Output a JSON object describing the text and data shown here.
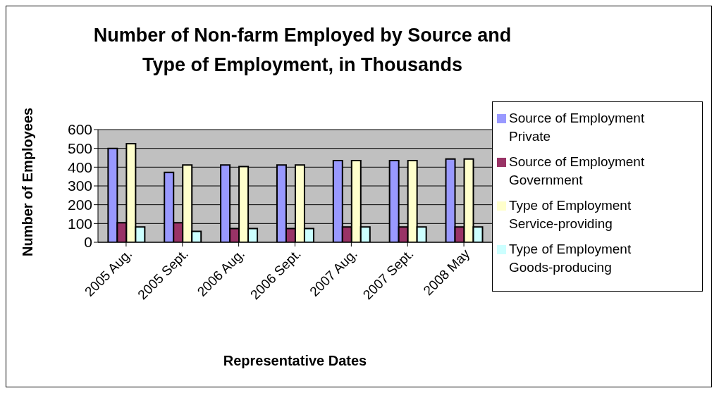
{
  "chart_data": {
    "type": "bar",
    "title": "Number of Non-farm Employed by Source and Type of Employment, in Thousands",
    "xlabel": "Representative Dates",
    "ylabel": "Number of Employees",
    "categories": [
      "2005 Aug.",
      "2005 Sept.",
      "2006 Aug.",
      "2006 Sept.",
      "2007 Aug.",
      "2007 Sept.",
      "2008 May"
    ],
    "series": [
      {
        "name": "Source of Employment Private",
        "color": "#9999ff",
        "values": [
          500,
          372,
          412,
          412,
          435,
          435,
          443
        ]
      },
      {
        "name": "Source of Employment Government",
        "color": "#993366",
        "values": [
          104,
          104,
          73,
          73,
          82,
          82,
          82
        ]
      },
      {
        "name": "Type of Employment Service-providing",
        "color": "#ffffcc",
        "values": [
          525,
          412,
          403,
          412,
          435,
          435,
          443
        ]
      },
      {
        "name": "Type of Employment Goods-producing",
        "color": "#ccffff",
        "values": [
          82,
          58,
          73,
          73,
          82,
          82,
          82
        ]
      }
    ],
    "ylim": [
      0,
      600
    ],
    "yticks": [
      0,
      100,
      200,
      300,
      400,
      500,
      600
    ],
    "grid": "y",
    "legend": "right"
  }
}
